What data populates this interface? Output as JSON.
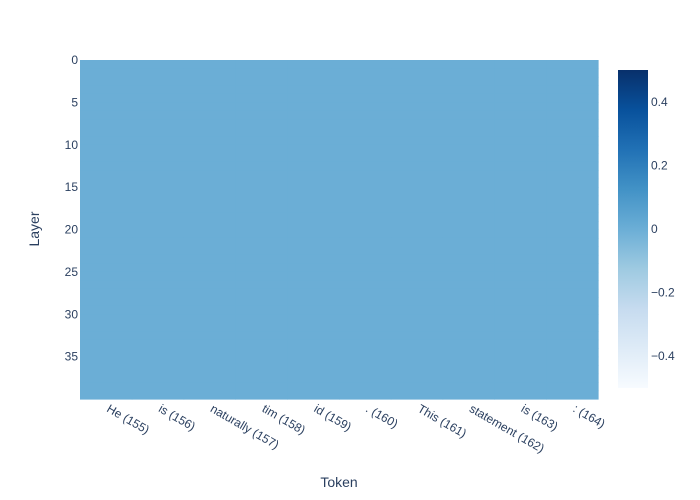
{
  "chart_data": {
    "type": "heatmap",
    "title": "",
    "xlabel": "Token",
    "ylabel": "Layer",
    "x_categories": [
      "He (155)",
      "is (156)",
      "naturally (157)",
      "tim (158)",
      "id (159)",
      ". (160)",
      "This (161)",
      "statement (162)",
      "is (163)",
      ": (164)"
    ],
    "y_range": [
      0,
      39
    ],
    "y_ticks": [
      "0",
      "5",
      "10",
      "15",
      "20",
      "25",
      "30",
      "35"
    ],
    "y_reversed": true,
    "values_note": "",
    "fill_value": 0,
    "colorscale": "Blues",
    "zmin": -0.5,
    "zmax": 0.5,
    "colorbar_ticks": [
      "0.4",
      "0.2",
      "0",
      "−0.2",
      "−0.4"
    ],
    "cell_color": "#6baed6",
    "colorbar_stops": [
      "#f7fbff",
      "#deebf7",
      "#c6dbef",
      "#9ecae1",
      "#6baed6",
      "#4292c6",
      "#2171b5",
      "#08519c",
      "#08306b"
    ],
    "grid": false,
    "legend": "colorbar-right"
  }
}
